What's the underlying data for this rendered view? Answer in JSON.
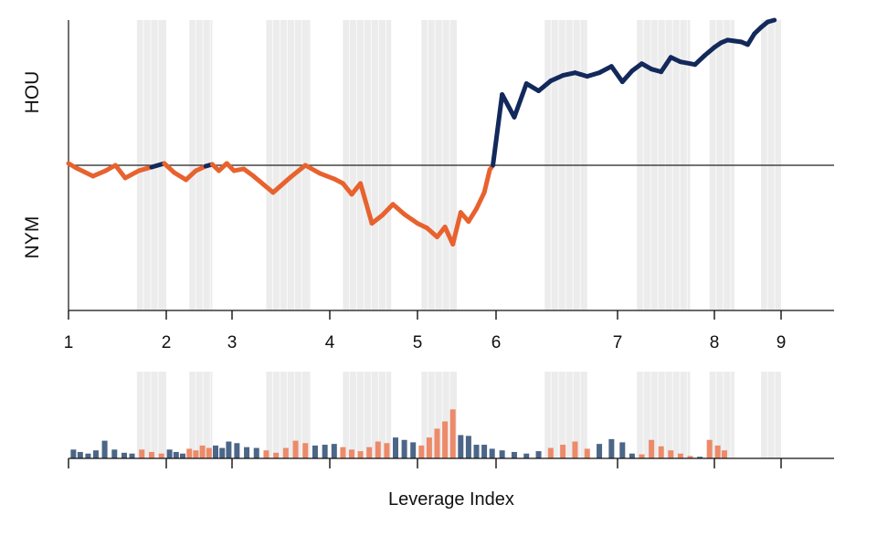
{
  "chart_data": {
    "type": "line",
    "title": "",
    "xlabel": "Leverage Index",
    "ylabel": "",
    "xlim": [
      1,
      9.6
    ],
    "x_ticks": [
      {
        "value": 1,
        "label": "1"
      },
      {
        "value": 2,
        "label": "2"
      },
      {
        "value": 3,
        "label": "3"
      },
      {
        "value": 4,
        "label": "4"
      },
      {
        "value": 5,
        "label": "5"
      },
      {
        "value": 6,
        "label": "6"
      },
      {
        "value": 7,
        "label": "7"
      },
      {
        "value": 8,
        "label": "8"
      },
      {
        "value": 9,
        "label": "9"
      }
    ],
    "side_labels": {
      "top": "HOU",
      "bottom": "NYM"
    },
    "ylim": [
      -1.6,
      1.6
    ],
    "baseline": 0,
    "grid": false,
    "colors": {
      "above": "#13295b",
      "below": "#e8622e",
      "shade": "#ececec",
      "axis": "#111111",
      "bar_above": "#4c6688",
      "bar_below": "#ec8a6a"
    },
    "shaded_bands": [
      [
        1.7,
        2.0
      ],
      [
        2.35,
        2.7
      ],
      [
        3.35,
        3.8
      ],
      [
        4.15,
        4.7
      ],
      [
        5.05,
        5.5
      ],
      [
        6.4,
        6.75
      ],
      [
        7.2,
        7.75
      ],
      [
        7.95,
        8.3
      ],
      [
        8.7,
        9.0
      ]
    ],
    "series": [
      {
        "points": [
          [
            1.0,
            0.02
          ],
          [
            1.08,
            -0.03
          ],
          [
            1.25,
            -0.12
          ],
          [
            1.38,
            -0.06
          ],
          [
            1.48,
            0.0
          ],
          [
            1.58,
            -0.14
          ],
          [
            1.72,
            -0.06
          ],
          [
            1.85,
            -0.02
          ],
          [
            1.98,
            0.02
          ],
          [
            2.12,
            -0.08
          ],
          [
            2.3,
            -0.16
          ],
          [
            2.45,
            -0.06
          ],
          [
            2.6,
            -0.01
          ],
          [
            2.7,
            0.01
          ],
          [
            2.8,
            -0.06
          ],
          [
            2.92,
            0.02
          ],
          [
            3.02,
            -0.06
          ],
          [
            3.12,
            -0.04
          ],
          [
            3.22,
            -0.12
          ],
          [
            3.42,
            -0.3
          ],
          [
            3.6,
            -0.13
          ],
          [
            3.75,
            0.0
          ],
          [
            3.9,
            -0.09
          ],
          [
            4.05,
            -0.15
          ],
          [
            4.15,
            -0.2
          ],
          [
            4.25,
            -0.32
          ],
          [
            4.35,
            -0.2
          ],
          [
            4.48,
            -0.64
          ],
          [
            4.6,
            -0.55
          ],
          [
            4.72,
            -0.43
          ],
          [
            4.85,
            -0.54
          ],
          [
            5.0,
            -0.64
          ],
          [
            5.12,
            -0.69
          ],
          [
            5.25,
            -0.79
          ],
          [
            5.35,
            -0.68
          ],
          [
            5.45,
            -0.87
          ],
          [
            5.55,
            -0.52
          ],
          [
            5.65,
            -0.62
          ],
          [
            5.75,
            -0.48
          ],
          [
            5.85,
            -0.3
          ],
          [
            5.92,
            -0.05
          ],
          [
            5.96,
            0.0
          ],
          [
            6.05,
            0.78
          ],
          [
            6.15,
            0.53
          ],
          [
            6.25,
            0.9
          ],
          [
            6.35,
            0.82
          ],
          [
            6.45,
            0.93
          ],
          [
            6.55,
            0.99
          ],
          [
            6.65,
            1.02
          ],
          [
            6.75,
            0.98
          ],
          [
            6.85,
            1.02
          ],
          [
            6.95,
            1.09
          ],
          [
            7.05,
            0.92
          ],
          [
            7.15,
            1.04
          ],
          [
            7.25,
            1.12
          ],
          [
            7.35,
            1.06
          ],
          [
            7.45,
            1.03
          ],
          [
            7.55,
            1.19
          ],
          [
            7.65,
            1.14
          ],
          [
            7.8,
            1.11
          ],
          [
            7.9,
            1.21
          ],
          [
            8.0,
            1.3
          ],
          [
            8.1,
            1.35
          ],
          [
            8.2,
            1.38
          ],
          [
            8.3,
            1.37
          ],
          [
            8.4,
            1.36
          ],
          [
            8.5,
            1.33
          ],
          [
            8.6,
            1.45
          ],
          [
            8.7,
            1.52
          ],
          [
            8.8,
            1.58
          ],
          [
            8.9,
            1.6
          ]
        ]
      }
    ],
    "bars": [
      [
        1.05,
        0.22
      ],
      [
        1.12,
        0.16
      ],
      [
        1.2,
        0.12
      ],
      [
        1.28,
        0.2
      ],
      [
        1.37,
        0.44
      ],
      [
        1.47,
        0.22
      ],
      [
        1.57,
        0.14
      ],
      [
        1.65,
        0.12
      ],
      [
        1.75,
        0.22
      ],
      [
        1.85,
        0.16
      ],
      [
        1.95,
        0.12
      ],
      [
        2.05,
        0.22
      ],
      [
        2.15,
        0.16
      ],
      [
        2.25,
        0.12
      ],
      [
        2.35,
        0.24
      ],
      [
        2.45,
        0.2
      ],
      [
        2.55,
        0.32
      ],
      [
        2.65,
        0.26
      ],
      [
        2.75,
        0.32
      ],
      [
        2.85,
        0.26
      ],
      [
        2.95,
        0.42
      ],
      [
        3.05,
        0.38
      ],
      [
        3.15,
        0.28
      ],
      [
        3.25,
        0.26
      ],
      [
        3.35,
        0.2
      ],
      [
        3.45,
        0.14
      ],
      [
        3.55,
        0.26
      ],
      [
        3.65,
        0.44
      ],
      [
        3.75,
        0.38
      ],
      [
        3.85,
        0.32
      ],
      [
        3.95,
        0.34
      ],
      [
        4.05,
        0.36
      ],
      [
        4.15,
        0.28
      ],
      [
        4.25,
        0.22
      ],
      [
        4.35,
        0.18
      ],
      [
        4.45,
        0.28
      ],
      [
        4.55,
        0.42
      ],
      [
        4.65,
        0.38
      ],
      [
        4.75,
        0.52
      ],
      [
        4.85,
        0.46
      ],
      [
        4.95,
        0.4
      ],
      [
        5.05,
        0.32
      ],
      [
        5.15,
        0.52
      ],
      [
        5.25,
        0.74
      ],
      [
        5.35,
        0.92
      ],
      [
        5.45,
        1.22
      ],
      [
        5.55,
        0.58
      ],
      [
        5.65,
        0.56
      ],
      [
        5.75,
        0.34
      ],
      [
        5.85,
        0.34
      ],
      [
        5.95,
        0.24
      ],
      [
        6.05,
        0.2
      ],
      [
        6.15,
        0.16
      ],
      [
        6.25,
        0.12
      ],
      [
        6.35,
        0.18
      ],
      [
        6.45,
        0.26
      ],
      [
        6.55,
        0.34
      ],
      [
        6.65,
        0.42
      ],
      [
        6.75,
        0.24
      ],
      [
        6.85,
        0.36
      ],
      [
        6.95,
        0.48
      ],
      [
        7.05,
        0.4
      ],
      [
        7.15,
        0.12
      ],
      [
        7.25,
        0.1
      ],
      [
        7.35,
        0.46
      ],
      [
        7.45,
        0.3
      ],
      [
        7.55,
        0.2
      ],
      [
        7.65,
        0.12
      ],
      [
        7.75,
        0.06
      ],
      [
        7.85,
        0.04
      ],
      [
        7.95,
        0.46
      ],
      [
        8.05,
        0.32
      ],
      [
        8.15,
        0.2
      ]
    ]
  }
}
